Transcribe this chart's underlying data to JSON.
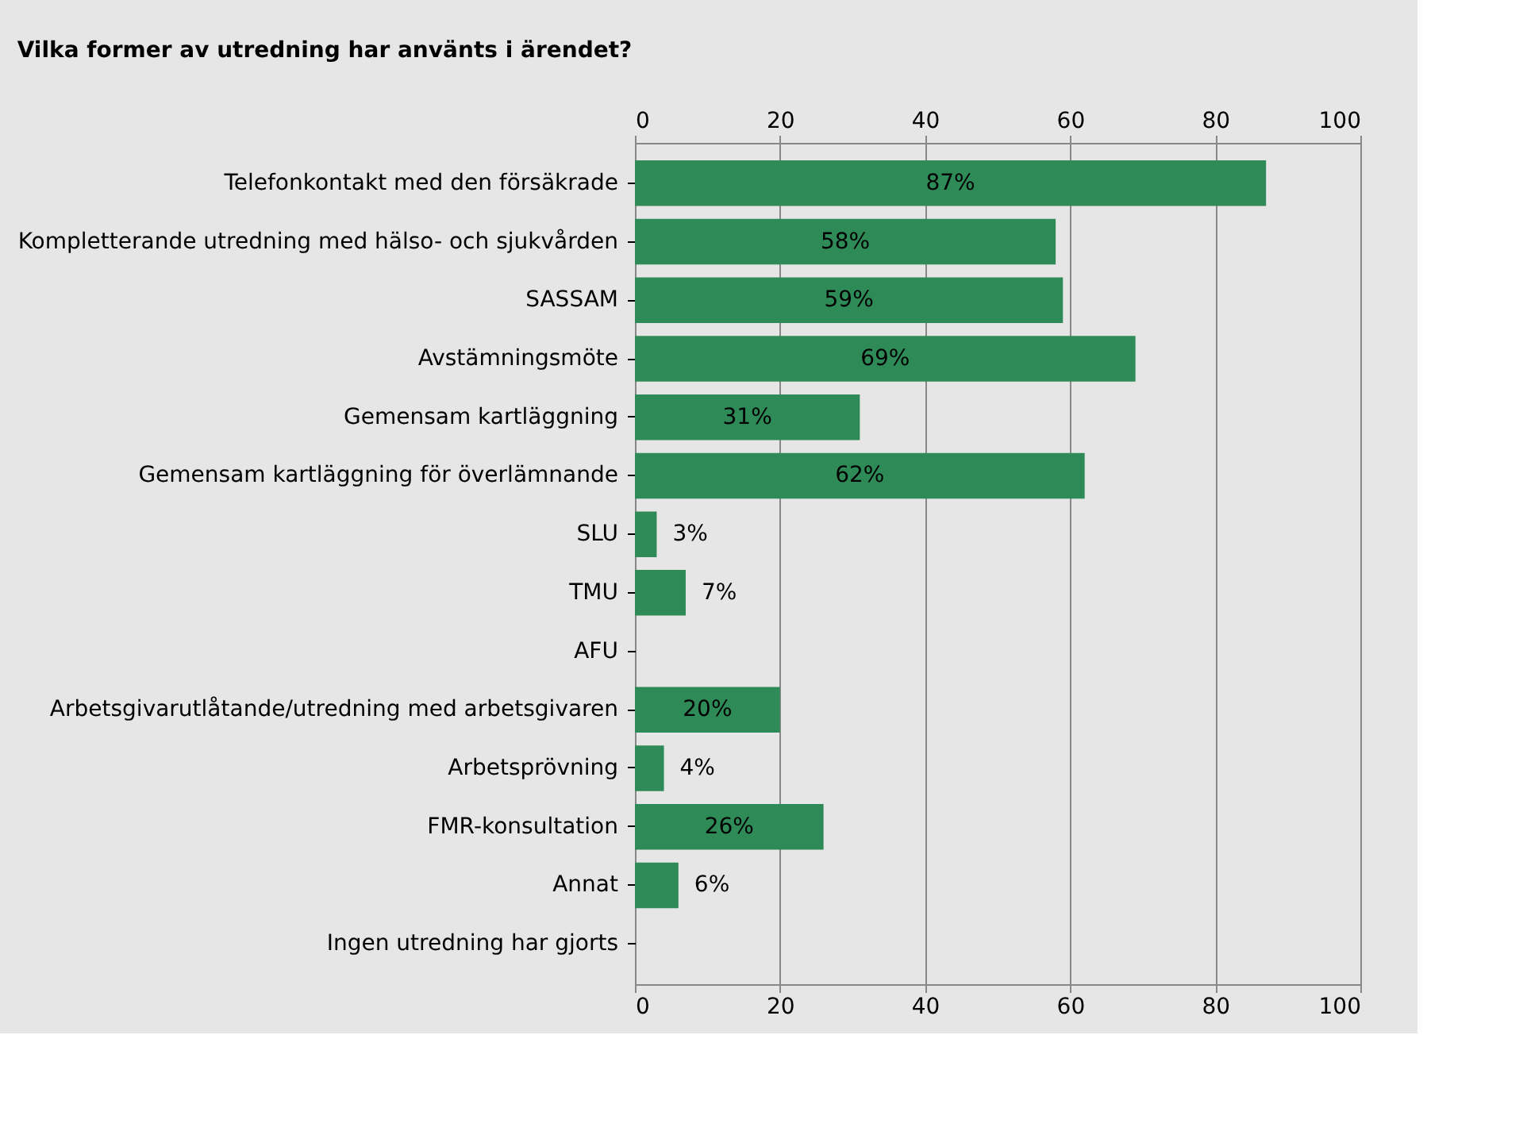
{
  "chart_data": {
    "type": "bar",
    "orientation": "horizontal",
    "title": "Vilka former av utredning har använts i ärendet?",
    "categories": [
      "Telefonkontakt med den försäkrade",
      "Kompletterande utredning med hälso- och sjukvården",
      "SASSAM",
      "Avstämningsmöte",
      "Gemensam kartläggning",
      "Gemensam kartläggning för överlämnande",
      "SLU",
      "TMU",
      "AFU",
      "Arbetsgivarutlåtande/utredning med arbetsgivaren",
      "Arbetsprövning",
      "FMR-konsultation",
      "Annat",
      "Ingen utredning har gjorts"
    ],
    "values": [
      87,
      58,
      59,
      69,
      31,
      62,
      3,
      7,
      0,
      20,
      4,
      26,
      6,
      0
    ],
    "value_labels": [
      "87%",
      "58%",
      "59%",
      "69%",
      "31%",
      "62%",
      "3%",
      "7%",
      null,
      "20%",
      "4%",
      "26%",
      "6%",
      null
    ],
    "color": "#2e8b57",
    "xlim": [
      0,
      100
    ],
    "xticks": [
      0,
      20,
      40,
      60,
      80,
      100
    ],
    "x2lim": [
      0,
      100
    ],
    "x2ticks": [
      0,
      20,
      40,
      60,
      80,
      100
    ],
    "grid": "x",
    "legend": false
  }
}
